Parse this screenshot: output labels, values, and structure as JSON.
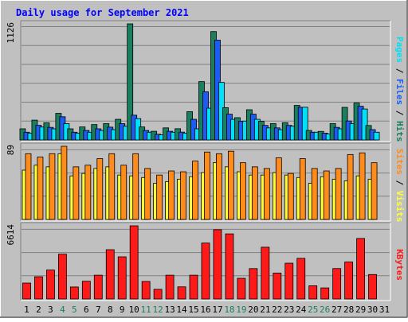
{
  "chart_data": {
    "type": "bar",
    "title": "Daily usage for September 2021",
    "days": [
      "1",
      "2",
      "3",
      "4",
      "5",
      "6",
      "7",
      "8",
      "9",
      "10",
      "11",
      "12",
      "13",
      "14",
      "15",
      "16",
      "17",
      "18",
      "19",
      "20",
      "21",
      "22",
      "23",
      "24",
      "25",
      "26",
      "27",
      "28",
      "29",
      "30",
      "31"
    ],
    "weekend_days": [
      "4",
      "5",
      "11",
      "12",
      "18",
      "19",
      "25",
      "26"
    ],
    "panels": [
      {
        "id": "hits-files-pages",
        "max_label": "1126",
        "ylim": [
          0,
          1126
        ],
        "right_label": [
          {
            "text": "Pages",
            "color": "#00e0f8"
          },
          {
            "text": " / ",
            "color": "#000000"
          },
          {
            "text": "Files",
            "color": "#1d5cf4"
          },
          {
            "text": " / ",
            "color": "#000000"
          },
          {
            "text": "Hits",
            "color": "#1a7f5f"
          }
        ],
        "series": [
          {
            "name": "Hits",
            "color": "#1a7f5f",
            "values": [
              108,
              192,
              166,
              258,
              108,
              126,
              149,
              158,
              200,
              1126,
              126,
              84,
              117,
              109,
              274,
              566,
              1051,
              313,
              216,
              293,
              181,
              158,
              167,
              335,
              92,
              83,
              158,
              316,
              358,
              140,
              0
            ]
          },
          {
            "name": "Files",
            "color": "#1d5cf4",
            "values": [
              75,
              142,
              122,
              225,
              75,
              92,
              108,
              124,
              158,
              240,
              92,
              55,
              84,
              76,
              200,
              467,
              968,
              250,
              182,
              250,
              141,
              117,
              141,
              317,
              75,
              66,
              122,
              184,
              327,
              100,
              0
            ]
          },
          {
            "name": "Pages",
            "color": "#00e0f8",
            "values": [
              66,
              125,
              108,
              158,
              66,
              75,
              92,
              100,
              133,
              207,
              75,
              50,
              75,
              66,
              108,
              308,
              558,
              200,
              183,
              200,
              117,
              100,
              133,
              317,
              75,
              58,
              108,
              158,
              300,
              75,
              0
            ]
          }
        ]
      },
      {
        "id": "visits-sites",
        "max_label": "89",
        "ylim": [
          0,
          89
        ],
        "right_label": [
          {
            "text": "Sites",
            "color": "#ff8c1a"
          },
          {
            "text": " / ",
            "color": "#000000"
          },
          {
            "text": "Visits",
            "color": "#ffff33"
          }
        ],
        "series": [
          {
            "name": "Visits",
            "color": "#ffff33",
            "values": [
              60,
              66,
              64,
              80,
              53,
              56,
              62,
              64,
              54,
              53,
              51,
              44,
              46,
              49,
              52,
              57,
              69,
              64,
              58,
              54,
              54,
              57,
              54,
              51,
              44,
              52,
              49,
              47,
              53,
              49,
              0
            ]
          },
          {
            "name": "Sites",
            "color": "#ff8c1a",
            "values": [
              80,
              76,
              80,
              89,
              64,
              66,
              74,
              80,
              66,
              80,
              62,
              54,
              59,
              58,
              71,
              82,
              80,
              83,
              69,
              64,
              62,
              75,
              56,
              74,
              62,
              59,
              62,
              79,
              81,
              69,
              0
            ]
          }
        ]
      },
      {
        "id": "kbytes",
        "max_label": "6614",
        "ylim": [
          0,
          6614
        ],
        "right_label": [
          {
            "text": "KBytes",
            "color": "#ff1a1a"
          }
        ],
        "series": [
          {
            "name": "KBytes",
            "color": "#ff1a1a",
            "values": [
              1436,
              2005,
              2613,
              4048,
              1083,
              1600,
              2149,
              4454,
              3810,
              6614,
              1580,
              869,
              2149,
              1094,
              2149,
              5053,
              6260,
              5885,
              1866,
              2745,
              4679,
              2341,
              3232,
              3671,
              1192,
              1000,
              2750,
              3342,
              5470,
              2208,
              0
            ]
          }
        ]
      }
    ],
    "colors": {
      "frame_bg": "#c0c0c0",
      "title": "#0000ff",
      "weekend_tick": "#1a7f5f",
      "weekday_tick": "#000000"
    }
  }
}
